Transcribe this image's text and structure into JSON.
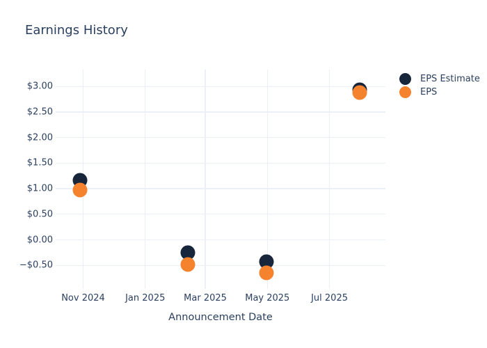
{
  "chart_data": {
    "type": "scatter",
    "title": "Earnings History",
    "xlabel": "Announcement Date",
    "ylabel": "",
    "grid": true,
    "legend_position": "right-outside-top",
    "background": "#ffffff",
    "grid_color": "#ebeff7",
    "text_color": "#2a3f5f",
    "x_domain": [
      "2024-10-05",
      "2025-08-25"
    ],
    "y_domain": [
      -0.96,
      3.33
    ],
    "x_ticks": [
      {
        "date": "2024-11-01",
        "label": "Nov 2024"
      },
      {
        "date": "2025-01-01",
        "label": "Jan 2025"
      },
      {
        "date": "2025-03-01",
        "label": "Mar 2025"
      },
      {
        "date": "2025-05-01",
        "label": "May 2025"
      },
      {
        "date": "2025-07-01",
        "label": "Jul 2025"
      }
    ],
    "y_ticks": [
      {
        "value": 3.0,
        "label": "$3.00"
      },
      {
        "value": 2.5,
        "label": "$2.50"
      },
      {
        "value": 2.0,
        "label": "$2.00"
      },
      {
        "value": 1.5,
        "label": "$1.50"
      },
      {
        "value": 1.0,
        "label": "$1.00"
      },
      {
        "value": 0.5,
        "label": "$0.50"
      },
      {
        "value": 0.0,
        "label": "$0.00"
      },
      {
        "value": -0.5,
        "label": "−$0.50"
      }
    ],
    "series": [
      {
        "name": "EPS Estimate",
        "color": "#17263b",
        "points": [
          {
            "date": "2024-10-29",
            "value": 1.16
          },
          {
            "date": "2025-02-12",
            "value": -0.25
          },
          {
            "date": "2025-04-30",
            "value": -0.43
          },
          {
            "date": "2025-07-31",
            "value": 2.94
          }
        ]
      },
      {
        "name": "EPS",
        "color": "#f5822d",
        "points": [
          {
            "date": "2024-10-29",
            "value": 0.97
          },
          {
            "date": "2025-02-12",
            "value": -0.49
          },
          {
            "date": "2025-04-30",
            "value": -0.64
          },
          {
            "date": "2025-07-31",
            "value": 2.88
          }
        ]
      }
    ]
  }
}
